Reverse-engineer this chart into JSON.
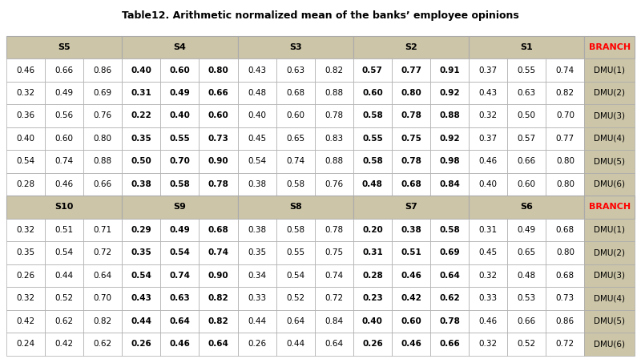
{
  "title": "Table12. Arithmetic normalized mean of the banks’ employee opinions",
  "header_spans_top": [
    [
      "S5",
      0,
      3
    ],
    [
      "S4",
      3,
      3
    ],
    [
      "S3",
      6,
      3
    ],
    [
      "S2",
      9,
      3
    ],
    [
      "S1",
      12,
      3
    ],
    [
      "BRANCH",
      15,
      1
    ]
  ],
  "header_spans_bottom": [
    [
      "S10",
      0,
      3
    ],
    [
      "S9",
      3,
      3
    ],
    [
      "S8",
      6,
      3
    ],
    [
      "S7",
      9,
      3
    ],
    [
      "S6",
      12,
      3
    ],
    [
      "BRANCH",
      15,
      1
    ]
  ],
  "data_top": [
    [
      "0.46",
      "0.66",
      "0.86",
      "0.40",
      "0.60",
      "0.80",
      "0.43",
      "0.63",
      "0.82",
      "0.57",
      "0.77",
      "0.91",
      "0.37",
      "0.55",
      "0.74",
      "DMU(1)"
    ],
    [
      "0.32",
      "0.49",
      "0.69",
      "0.31",
      "0.49",
      "0.66",
      "0.48",
      "0.68",
      "0.88",
      "0.60",
      "0.80",
      "0.92",
      "0.43",
      "0.63",
      "0.82",
      "DMU(2)"
    ],
    [
      "0.36",
      "0.56",
      "0.76",
      "0.22",
      "0.40",
      "0.60",
      "0.40",
      "0.60",
      "0.78",
      "0.58",
      "0.78",
      "0.88",
      "0.32",
      "0.50",
      "0.70",
      "DMU(3)"
    ],
    [
      "0.40",
      "0.60",
      "0.80",
      "0.35",
      "0.55",
      "0.73",
      "0.45",
      "0.65",
      "0.83",
      "0.55",
      "0.75",
      "0.92",
      "0.37",
      "0.57",
      "0.77",
      "DMU(4)"
    ],
    [
      "0.54",
      "0.74",
      "0.88",
      "0.50",
      "0.70",
      "0.90",
      "0.54",
      "0.74",
      "0.88",
      "0.58",
      "0.78",
      "0.98",
      "0.46",
      "0.66",
      "0.80",
      "DMU(5)"
    ],
    [
      "0.28",
      "0.46",
      "0.66",
      "0.38",
      "0.58",
      "0.78",
      "0.38",
      "0.58",
      "0.76",
      "0.48",
      "0.68",
      "0.84",
      "0.40",
      "0.60",
      "0.80",
      "DMU(6)"
    ]
  ],
  "data_bottom": [
    [
      "0.32",
      "0.51",
      "0.71",
      "0.29",
      "0.49",
      "0.68",
      "0.38",
      "0.58",
      "0.78",
      "0.20",
      "0.38",
      "0.58",
      "0.31",
      "0.49",
      "0.68",
      "DMU(1)"
    ],
    [
      "0.35",
      "0.54",
      "0.72",
      "0.35",
      "0.54",
      "0.74",
      "0.35",
      "0.55",
      "0.75",
      "0.31",
      "0.51",
      "0.69",
      "0.45",
      "0.65",
      "0.80",
      "DMU(2)"
    ],
    [
      "0.26",
      "0.44",
      "0.64",
      "0.54",
      "0.74",
      "0.90",
      "0.34",
      "0.54",
      "0.74",
      "0.28",
      "0.46",
      "0.64",
      "0.32",
      "0.48",
      "0.68",
      "DMU(3)"
    ],
    [
      "0.32",
      "0.52",
      "0.70",
      "0.43",
      "0.63",
      "0.82",
      "0.33",
      "0.52",
      "0.72",
      "0.23",
      "0.42",
      "0.62",
      "0.33",
      "0.53",
      "0.73",
      "DMU(4)"
    ],
    [
      "0.42",
      "0.62",
      "0.82",
      "0.44",
      "0.64",
      "0.82",
      "0.44",
      "0.64",
      "0.84",
      "0.40",
      "0.60",
      "0.78",
      "0.46",
      "0.66",
      "0.86",
      "DMU(5)"
    ],
    [
      "0.24",
      "0.42",
      "0.62",
      "0.26",
      "0.46",
      "0.64",
      "0.26",
      "0.44",
      "0.64",
      "0.26",
      "0.46",
      "0.66",
      "0.32",
      "0.52",
      "0.72",
      "DMU(6)"
    ]
  ],
  "bold_cols": [
    3,
    4,
    5,
    9,
    10,
    11
  ],
  "header_bg": "#ccc5a8",
  "data_bg_white": "#ffffff",
  "dmu_bg": "#ccc5a8",
  "branch_color": "#ff0000",
  "text_color": "#000000",
  "border_color": "#aaaaaa",
  "col_widths": [
    1,
    1,
    1,
    1,
    1,
    1,
    1,
    1,
    1,
    1,
    1,
    1,
    1,
    1,
    1,
    1.3
  ]
}
